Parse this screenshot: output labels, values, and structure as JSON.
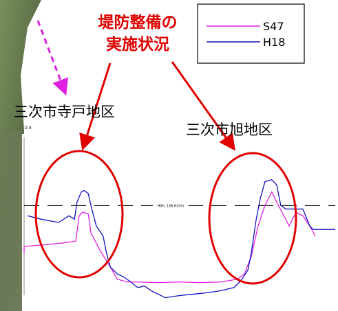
{
  "chart_data": {
    "type": "line",
    "title": [
      "堤防整備の",
      "実施状況"
    ],
    "region_labels": [
      "三次市寺戸地区",
      "三次市旭地区"
    ],
    "y_axis_label": "0.4",
    "hwl": {
      "value": 56.5,
      "label": "HWL 136.610m"
    },
    "xlim": [
      0,
      100
    ],
    "ylim": [
      -5,
      100
    ],
    "legend": "top-right",
    "series": [
      {
        "name": "S47",
        "color": "#e020e0",
        "x": [
          0,
          0,
          5.5,
          12.2,
          16.6,
          17.7,
          18.8,
          20.6,
          21.5,
          24.3,
          27.7,
          29.9,
          33.2,
          36.5,
          43.1,
          49.8,
          56.4,
          63.1,
          68.6,
          70.8,
          73.0,
          75.2,
          77.4,
          79.6,
          81.2,
          82.9,
          85.2,
          87.4,
          89.6,
          91.8,
          93.6
        ],
        "values": [
          26.1,
          30.4,
          31.3,
          32.6,
          33.9,
          50,
          52.2,
          51.3,
          39.1,
          28.3,
          17.4,
          9.6,
          7.8,
          7.8,
          7.4,
          7.8,
          7.4,
          7.8,
          9.6,
          13,
          23.9,
          43.5,
          56.5,
          65.2,
          58.7,
          52.2,
          43.5,
          52.2,
          50,
          43.5,
          37
        ]
      },
      {
        "name": "H18",
        "color": "#1010c0",
        "x": [
          1.1,
          5.5,
          11.1,
          14.4,
          16.2,
          17.0,
          18.4,
          19.2,
          20.6,
          21.5,
          23.2,
          25.4,
          26.5,
          27.7,
          29.9,
          32.1,
          34.3,
          36.5,
          38.7,
          40.9,
          43.1,
          45.4,
          49.8,
          54.2,
          58.6,
          63.1,
          67.5,
          69.7,
          71.9,
          73.0,
          74.6,
          75.9,
          77.4,
          79.6,
          81.2,
          82.5,
          84.1,
          86.3,
          89.6,
          91.8,
          92.9,
          100
        ],
        "values": [
          50,
          47.8,
          45.7,
          50,
          47.8,
          58.7,
          65.2,
          66.1,
          64.3,
          56.5,
          43.5,
          37,
          26.1,
          17.4,
          13,
          10.9,
          7.8,
          4.3,
          5.2,
          2.2,
          0,
          -2.2,
          -0.9,
          0,
          0.9,
          2.2,
          4.3,
          8.7,
          15.2,
          26.1,
          47.8,
          60.9,
          71.7,
          73,
          69.6,
          56.5,
          54.3,
          54.3,
          54.3,
          43.5,
          41.3,
          41.3
        ]
      }
    ]
  }
}
